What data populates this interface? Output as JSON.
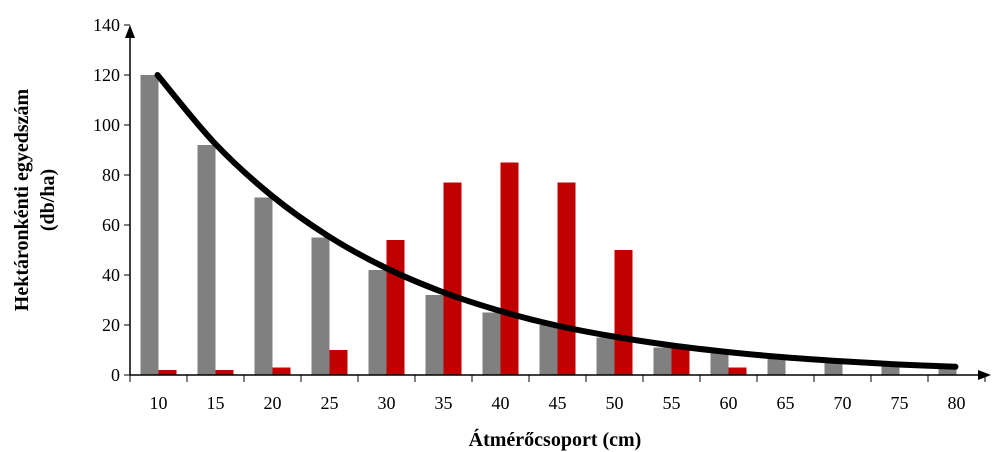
{
  "chart_data": {
    "type": "bar",
    "xlabel": "Átmérőcsoport (cm)",
    "ylabel_line1": "Hektáronkénti egyedszám",
    "ylabel_line2": "(db/ha)",
    "categories": [
      "10",
      "15",
      "20",
      "25",
      "30",
      "35",
      "40",
      "45",
      "50",
      "55",
      "60",
      "65",
      "70",
      "75",
      "80"
    ],
    "ylim": [
      0,
      140
    ],
    "yticks": [
      0,
      20,
      40,
      60,
      80,
      100,
      120,
      140
    ],
    "grid": false,
    "series": [
      {
        "color": "#808080",
        "values": [
          120,
          92,
          71,
          55,
          42,
          32,
          25,
          20,
          15,
          11,
          9,
          7,
          5,
          4,
          3
        ]
      },
      {
        "color": "#c00000",
        "values": [
          2,
          2,
          3,
          10,
          54,
          77,
          85,
          77,
          50,
          12,
          3,
          0,
          0,
          0,
          0
        ]
      }
    ],
    "curve": {
      "type": "line",
      "color": "#000000",
      "values": [
        120,
        92.8,
        71.8,
        55.5,
        42.9,
        33.2,
        25.7,
        19.8,
        15.4,
        11.9,
        9.2,
        7.1,
        5.5,
        4.2,
        3.3
      ]
    }
  }
}
